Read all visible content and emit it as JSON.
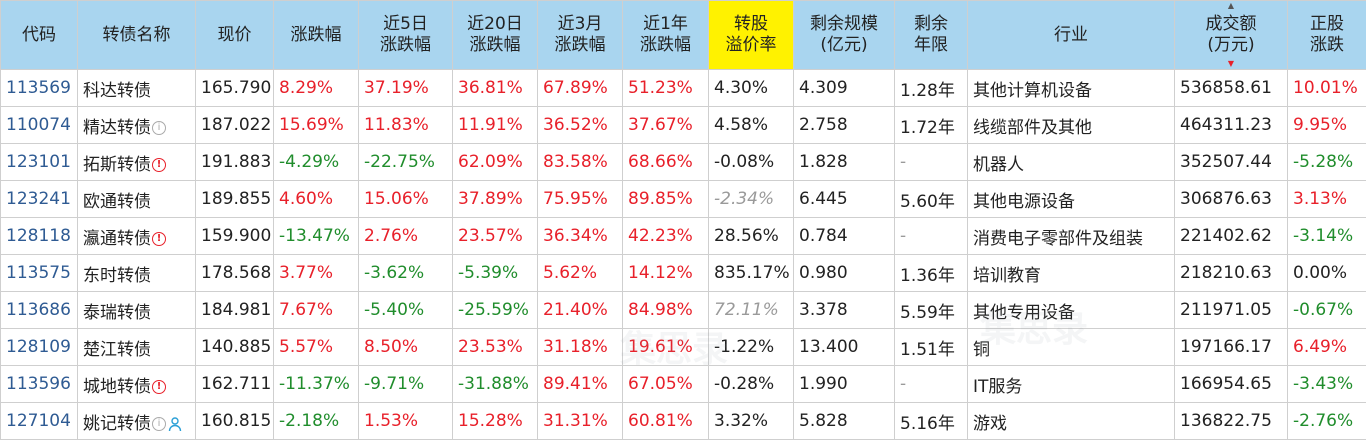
{
  "columns": [
    "代码",
    "转债名称",
    "现价",
    "涨跌幅",
    "近5日\n涨跌幅",
    "近20日\n涨跌幅",
    "近3月\n涨跌幅",
    "近1年\n涨跌幅",
    "转股\n溢价率",
    "剩余规模\n(亿元)",
    "剩余\n年限",
    "行业",
    "成交额\n(万元)",
    "正股\n涨跌"
  ],
  "rows": [
    {
      "code": "113569",
      "name": "科达转债",
      "icons": [],
      "price": "165.790",
      "chg": "8.29%",
      "chg5": "37.19%",
      "chg20": "36.81%",
      "chg3m": "67.89%",
      "chg1y": "51.23%",
      "premium": "4.30%",
      "premium_style": "",
      "scale": "4.309",
      "years": "1.28年",
      "industry": "其他计算机设备",
      "turnover": "536858.61",
      "stock": "10.01%"
    },
    {
      "code": "110074",
      "name": "精达转债",
      "icons": [
        "info"
      ],
      "price": "187.022",
      "chg": "15.69%",
      "chg5": "11.83%",
      "chg20": "11.91%",
      "chg3m": "36.52%",
      "chg1y": "37.67%",
      "premium": "4.58%",
      "premium_style": "",
      "scale": "2.758",
      "years": "1.72年",
      "industry": "线缆部件及其他",
      "turnover": "464311.23",
      "stock": "9.95%"
    },
    {
      "code": "123101",
      "name": "拓斯转债",
      "icons": [
        "warn"
      ],
      "price": "191.883",
      "chg": "-4.29%",
      "chg5": "-22.75%",
      "chg20": "62.09%",
      "chg3m": "83.58%",
      "chg1y": "68.66%",
      "premium": "-0.08%",
      "premium_style": "",
      "scale": "1.828",
      "years": "-",
      "industry": "机器人",
      "turnover": "352507.44",
      "stock": "-5.28%"
    },
    {
      "code": "123241",
      "name": "欧通转债",
      "icons": [],
      "price": "189.855",
      "chg": "4.60%",
      "chg5": "15.06%",
      "chg20": "37.89%",
      "chg3m": "75.95%",
      "chg1y": "89.85%",
      "premium": "-2.34%",
      "premium_style": "ital",
      "scale": "6.445",
      "years": "5.60年",
      "industry": "其他电源设备",
      "turnover": "306876.63",
      "stock": "3.13%"
    },
    {
      "code": "128118",
      "name": "瀛通转债",
      "icons": [
        "warn"
      ],
      "price": "159.900",
      "chg": "-13.47%",
      "chg5": "2.76%",
      "chg20": "23.57%",
      "chg3m": "36.34%",
      "chg1y": "42.23%",
      "premium": "28.56%",
      "premium_style": "",
      "scale": "0.784",
      "years": "-",
      "industry": "消费电子零部件及组装",
      "turnover": "221402.62",
      "stock": "-3.14%"
    },
    {
      "code": "113575",
      "name": "东时转债",
      "icons": [],
      "price": "178.568",
      "chg": "3.77%",
      "chg5": "-3.62%",
      "chg20": "-5.39%",
      "chg3m": "5.62%",
      "chg1y": "14.12%",
      "premium": "835.17%",
      "premium_style": "",
      "scale": "0.980",
      "years": "1.36年",
      "industry": "培训教育",
      "turnover": "218210.63",
      "stock": "0.00%"
    },
    {
      "code": "113686",
      "name": "泰瑞转债",
      "icons": [],
      "price": "184.981",
      "chg": "7.67%",
      "chg5": "-5.40%",
      "chg20": "-25.59%",
      "chg3m": "21.40%",
      "chg1y": "84.98%",
      "premium": "72.11%",
      "premium_style": "ital",
      "scale": "3.378",
      "years": "5.59年",
      "industry": "其他专用设备",
      "turnover": "211971.05",
      "stock": "-0.67%"
    },
    {
      "code": "128109",
      "name": "楚江转债",
      "icons": [],
      "price": "140.885",
      "chg": "5.57%",
      "chg5": "8.50%",
      "chg20": "23.53%",
      "chg3m": "31.18%",
      "chg1y": "19.61%",
      "premium": "-1.22%",
      "premium_style": "",
      "scale": "13.400",
      "years": "1.51年",
      "industry": "铜",
      "turnover": "197166.17",
      "stock": "6.49%"
    },
    {
      "code": "113596",
      "name": "城地转债",
      "icons": [
        "warn"
      ],
      "price": "162.711",
      "chg": "-11.37%",
      "chg5": "-9.71%",
      "chg20": "-31.88%",
      "chg3m": "89.41%",
      "chg1y": "67.05%",
      "premium": "-0.28%",
      "premium_style": "",
      "scale": "1.990",
      "years": "-",
      "industry": "IT服务",
      "turnover": "166954.65",
      "stock": "-3.43%"
    },
    {
      "code": "127104",
      "name": "姚记转债",
      "icons": [
        "info",
        "person"
      ],
      "price": "160.815",
      "chg": "-2.18%",
      "chg5": "1.53%",
      "chg20": "15.28%",
      "chg3m": "31.31%",
      "chg1y": "60.81%",
      "premium": "3.32%",
      "premium_style": "",
      "scale": "5.828",
      "years": "5.16年",
      "industry": "游戏",
      "turnover": "136822.75",
      "stock": "-2.76%"
    }
  ],
  "colors": {
    "header_bg": "#a9d5ef",
    "highlight": "#fff200",
    "up": "#e8202a",
    "down": "#208d2c",
    "code": "#2f5b93"
  }
}
